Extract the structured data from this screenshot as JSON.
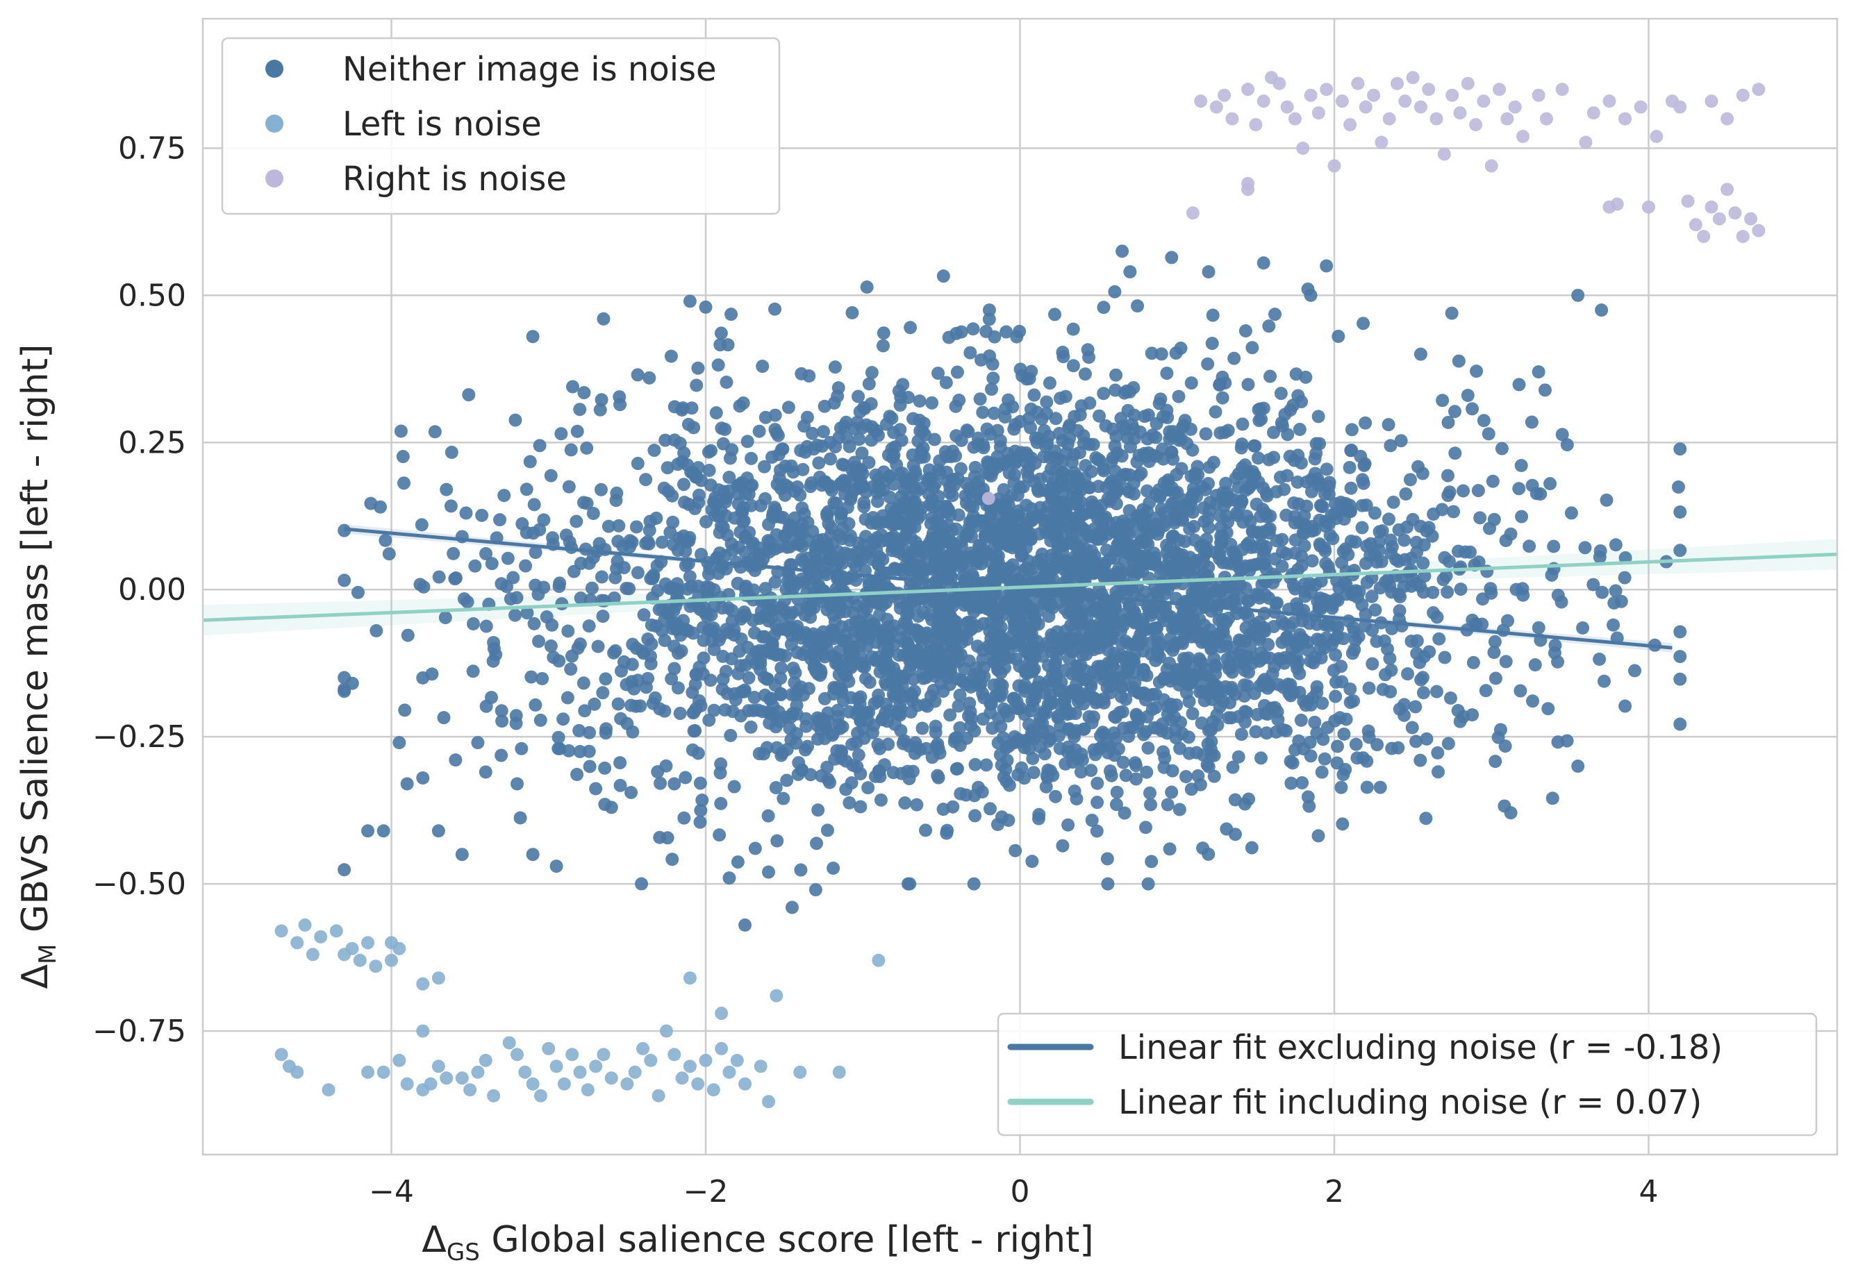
{
  "chart_data": {
    "type": "scatter",
    "xlabel": "Δ_GS Global salience score [left - right]",
    "xlabel_main": "Δ",
    "xlabel_sub": "GS",
    "xlabel_rest": " Global salience score [left - right]",
    "ylabel": "Δ_M GBVS Salience mass [left - right]",
    "ylabel_main": "Δ",
    "ylabel_sub": "M",
    "ylabel_rest": " GBVS Salience mass [left - right]",
    "xlim": [
      -5.2,
      5.2
    ],
    "ylim": [
      -0.96,
      0.97
    ],
    "grid": true,
    "x_ticks": [
      {
        "value": -4,
        "label": "−4"
      },
      {
        "value": -2,
        "label": "−2"
      },
      {
        "value": 0,
        "label": "0"
      },
      {
        "value": 2,
        "label": "2"
      },
      {
        "value": 4,
        "label": "4"
      }
    ],
    "y_ticks": [
      {
        "value": -0.75,
        "label": "−0.75"
      },
      {
        "value": -0.5,
        "label": "−0.50"
      },
      {
        "value": -0.25,
        "label": "−0.25"
      },
      {
        "value": 0,
        "label": "0.00"
      },
      {
        "value": 0.25,
        "label": "0.25"
      },
      {
        "value": 0.5,
        "label": "0.50"
      },
      {
        "value": 0.75,
        "label": "0.75"
      }
    ],
    "scatter_legend": {
      "placement": "top-left",
      "entries": [
        {
          "name": "Neither image is noise",
          "color": "#4a78a4"
        },
        {
          "name": "Left is noise",
          "color": "#86b0d2"
        },
        {
          "name": "Right is noise",
          "color": "#bdb8db"
        }
      ]
    },
    "scatter_series": [
      {
        "name": "Neither image is noise",
        "color": "#4a78a4",
        "approximate_cloud": {
          "x_center": 0,
          "x_sd": 1.45,
          "y_center": 0,
          "y_sd": 0.17,
          "x_range": [
            -4.3,
            4.2
          ],
          "y_range": [
            -0.5,
            0.58
          ],
          "count": 4200
        },
        "points": [
          [
            -4.15,
            -0.41
          ],
          [
            -4.05,
            -0.41
          ],
          [
            -3.95,
            -0.26
          ],
          [
            -3.9,
            -0.33
          ],
          [
            -3.8,
            -0.15
          ],
          [
            -3.8,
            -0.32
          ],
          [
            -3.7,
            -0.41
          ],
          [
            -3.65,
            0.17
          ],
          [
            -3.55,
            -0.45
          ],
          [
            -3.55,
            0.09
          ],
          [
            -3.45,
            -0.26
          ],
          [
            -3.4,
            -0.31
          ],
          [
            -3.35,
            -0.09
          ],
          [
            -3.3,
            0.01
          ],
          [
            -3.2,
            -0.33
          ],
          [
            -3.1,
            -0.45
          ],
          [
            -2.95,
            -0.47
          ],
          [
            -2.6,
            -0.37
          ],
          [
            -2.2,
            -0.33
          ],
          [
            -1.85,
            -0.49
          ],
          [
            -1.75,
            -0.57
          ],
          [
            -1.6,
            -0.48
          ],
          [
            -1.45,
            -0.54
          ],
          [
            -1.3,
            -0.51
          ],
          [
            0.65,
            0.575
          ],
          [
            0.7,
            0.54
          ],
          [
            1.2,
            0.54
          ],
          [
            1.55,
            0.555
          ],
          [
            1.85,
            0.5
          ],
          [
            1.95,
            0.55
          ],
          [
            3.55,
            0.5
          ],
          [
            3.7,
            0.475
          ],
          [
            3.3,
            0.37
          ],
          [
            3.55,
            -0.3
          ],
          [
            -2.1,
            0.49
          ],
          [
            -2.0,
            0.48
          ],
          [
            2.55,
            0.4
          ],
          [
            2.85,
            0.33
          ],
          [
            -2.65,
            0.46
          ],
          [
            -3.1,
            0.43
          ]
        ]
      },
      {
        "name": "Left is noise",
        "color": "#86b0d2",
        "points": [
          [
            -4.7,
            -0.58
          ],
          [
            -4.6,
            -0.6
          ],
          [
            -4.55,
            -0.57
          ],
          [
            -4.5,
            -0.62
          ],
          [
            -4.45,
            -0.59
          ],
          [
            -4.35,
            -0.58
          ],
          [
            -4.3,
            -0.62
          ],
          [
            -4.25,
            -0.61
          ],
          [
            -4.2,
            -0.63
          ],
          [
            -4.15,
            -0.6
          ],
          [
            -4.1,
            -0.64
          ],
          [
            -4.0,
            -0.6
          ],
          [
            -4.0,
            -0.63
          ],
          [
            -3.95,
            -0.61
          ],
          [
            -3.8,
            -0.67
          ],
          [
            -3.7,
            -0.66
          ],
          [
            -4.7,
            -0.79
          ],
          [
            -4.65,
            -0.81
          ],
          [
            -4.6,
            -0.82
          ],
          [
            -4.4,
            -0.85
          ],
          [
            -4.15,
            -0.82
          ],
          [
            -4.05,
            -0.82
          ],
          [
            -3.95,
            -0.8
          ],
          [
            -3.9,
            -0.84
          ],
          [
            -3.8,
            -0.85
          ],
          [
            -3.8,
            -0.75
          ],
          [
            -3.75,
            -0.84
          ],
          [
            -3.7,
            -0.81
          ],
          [
            -3.65,
            -0.83
          ],
          [
            -3.55,
            -0.83
          ],
          [
            -3.5,
            -0.85
          ],
          [
            -3.45,
            -0.82
          ],
          [
            -3.4,
            -0.8
          ],
          [
            -3.35,
            -0.86
          ],
          [
            -3.25,
            -0.77
          ],
          [
            -3.2,
            -0.79
          ],
          [
            -3.15,
            -0.82
          ],
          [
            -3.1,
            -0.84
          ],
          [
            -3.05,
            -0.86
          ],
          [
            -3.0,
            -0.78
          ],
          [
            -2.95,
            -0.81
          ],
          [
            -2.9,
            -0.84
          ],
          [
            -2.85,
            -0.79
          ],
          [
            -2.8,
            -0.82
          ],
          [
            -2.75,
            -0.85
          ],
          [
            -2.7,
            -0.81
          ],
          [
            -2.65,
            -0.79
          ],
          [
            -2.6,
            -0.83
          ],
          [
            -2.5,
            -0.84
          ],
          [
            -2.45,
            -0.82
          ],
          [
            -2.4,
            -0.78
          ],
          [
            -2.35,
            -0.8
          ],
          [
            -2.3,
            -0.86
          ],
          [
            -2.25,
            -0.75
          ],
          [
            -2.2,
            -0.79
          ],
          [
            -2.15,
            -0.83
          ],
          [
            -2.1,
            -0.81
          ],
          [
            -2.05,
            -0.84
          ],
          [
            -2.0,
            -0.8
          ],
          [
            -1.95,
            -0.85
          ],
          [
            -1.9,
            -0.78
          ],
          [
            -1.85,
            -0.82
          ],
          [
            -1.8,
            -0.8
          ],
          [
            -1.75,
            -0.84
          ],
          [
            -1.65,
            -0.81
          ],
          [
            -1.6,
            -0.87
          ],
          [
            -1.4,
            -0.82
          ],
          [
            -1.15,
            -0.82
          ],
          [
            -2.1,
            -0.66
          ],
          [
            -1.9,
            -0.72
          ],
          [
            -1.55,
            -0.69
          ],
          [
            -0.9,
            -0.63
          ]
        ]
      },
      {
        "name": "Right is noise",
        "color": "#bdb8db",
        "points": [
          [
            1.1,
            0.64
          ],
          [
            1.15,
            0.83
          ],
          [
            1.25,
            0.82
          ],
          [
            1.3,
            0.84
          ],
          [
            1.35,
            0.8
          ],
          [
            1.45,
            0.85
          ],
          [
            1.5,
            0.79
          ],
          [
            1.55,
            0.83
          ],
          [
            1.6,
            0.87
          ],
          [
            1.65,
            0.86
          ],
          [
            1.7,
            0.82
          ],
          [
            1.75,
            0.8
          ],
          [
            1.8,
            0.75
          ],
          [
            1.85,
            0.84
          ],
          [
            1.9,
            0.81
          ],
          [
            1.95,
            0.85
          ],
          [
            2.0,
            0.72
          ],
          [
            2.05,
            0.83
          ],
          [
            2.1,
            0.79
          ],
          [
            2.15,
            0.86
          ],
          [
            2.2,
            0.82
          ],
          [
            2.25,
            0.84
          ],
          [
            2.3,
            0.76
          ],
          [
            2.35,
            0.8
          ],
          [
            2.4,
            0.86
          ],
          [
            2.45,
            0.83
          ],
          [
            2.5,
            0.87
          ],
          [
            2.55,
            0.82
          ],
          [
            2.6,
            0.85
          ],
          [
            2.65,
            0.8
          ],
          [
            2.7,
            0.74
          ],
          [
            2.75,
            0.84
          ],
          [
            2.8,
            0.81
          ],
          [
            2.85,
            0.86
          ],
          [
            2.9,
            0.79
          ],
          [
            2.95,
            0.83
          ],
          [
            3.0,
            0.72
          ],
          [
            3.05,
            0.85
          ],
          [
            3.1,
            0.8
          ],
          [
            3.15,
            0.82
          ],
          [
            3.2,
            0.77
          ],
          [
            3.3,
            0.84
          ],
          [
            3.35,
            0.8
          ],
          [
            3.45,
            0.85
          ],
          [
            3.6,
            0.76
          ],
          [
            3.65,
            0.81
          ],
          [
            3.75,
            0.83
          ],
          [
            3.85,
            0.8
          ],
          [
            3.95,
            0.82
          ],
          [
            4.05,
            0.77
          ],
          [
            4.15,
            0.83
          ],
          [
            4.2,
            0.82
          ],
          [
            4.4,
            0.83
          ],
          [
            4.5,
            0.8
          ],
          [
            4.6,
            0.84
          ],
          [
            4.7,
            0.85
          ],
          [
            1.45,
            0.68
          ],
          [
            1.45,
            0.69
          ],
          [
            3.75,
            0.65
          ],
          [
            3.8,
            0.655
          ],
          [
            4.0,
            0.65
          ],
          [
            4.25,
            0.66
          ],
          [
            4.3,
            0.62
          ],
          [
            4.35,
            0.6
          ],
          [
            4.4,
            0.65
          ],
          [
            4.45,
            0.63
          ],
          [
            4.5,
            0.68
          ],
          [
            4.55,
            0.64
          ],
          [
            4.6,
            0.6
          ],
          [
            4.65,
            0.63
          ],
          [
            4.7,
            0.61
          ],
          [
            -0.2,
            0.155
          ]
        ]
      }
    ],
    "fit_lines": [
      {
        "name": "Linear fit excluding noise (r = -0.18)",
        "color": "#4a78a4",
        "x": [
          -4.3,
          4.15
        ],
        "y": [
          0.103,
          -0.099
        ],
        "ci": 0.004
      },
      {
        "name": "Linear fit including noise (r = 0.07)",
        "color": "#8fd1c4",
        "x": [
          -5.2,
          5.2
        ],
        "y": [
          -0.052,
          0.06
        ],
        "ci": 0.013
      }
    ],
    "line_legend": {
      "placement": "bottom-right"
    }
  }
}
